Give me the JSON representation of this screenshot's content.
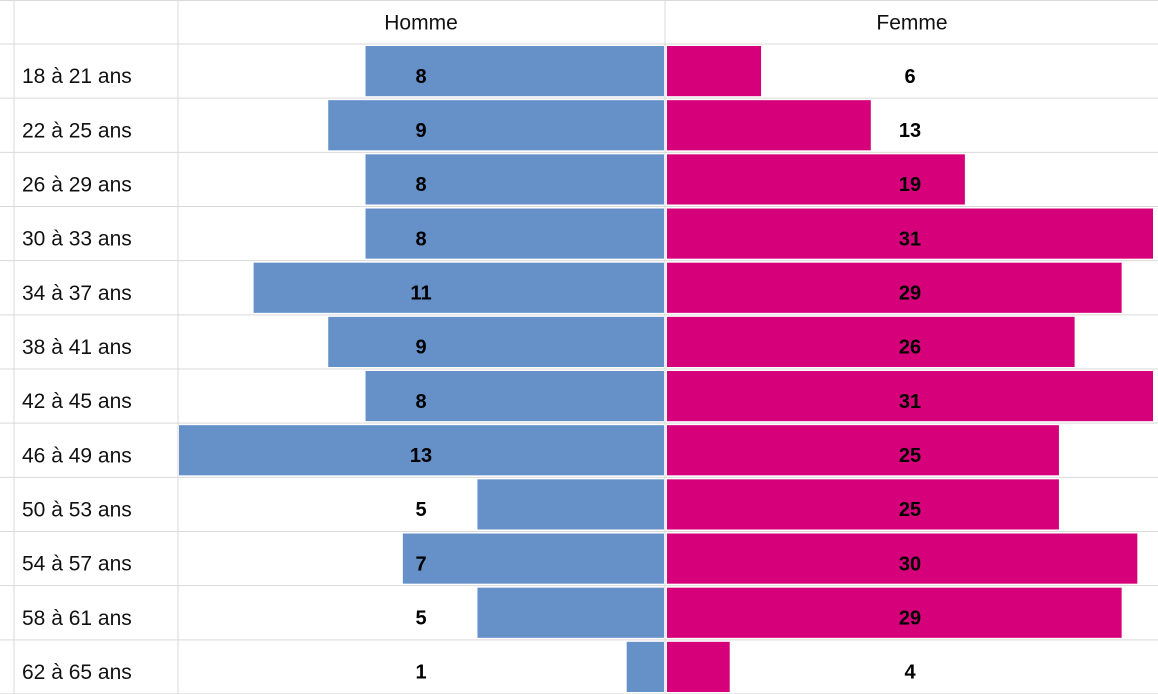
{
  "chart_data": {
    "type": "pyramid",
    "categories": [
      "18 à 21 ans",
      "22 à 25 ans",
      "26 à 29 ans",
      "30 à 33 ans",
      "34 à 37 ans",
      "38 à 41 ans",
      "42 à 45 ans",
      "46 à 49 ans",
      "50 à 53 ans",
      "54 à 57 ans",
      "58 à 61 ans",
      "62 à 65 ans"
    ],
    "series": [
      {
        "name": "Homme",
        "color": "#6590c8",
        "values": [
          8,
          9,
          8,
          8,
          11,
          9,
          8,
          13,
          5,
          7,
          5,
          1
        ]
      },
      {
        "name": "Femme",
        "color": "#d6007a",
        "values": [
          6,
          13,
          19,
          31,
          29,
          26,
          31,
          25,
          25,
          30,
          29,
          4
        ]
      }
    ]
  }
}
